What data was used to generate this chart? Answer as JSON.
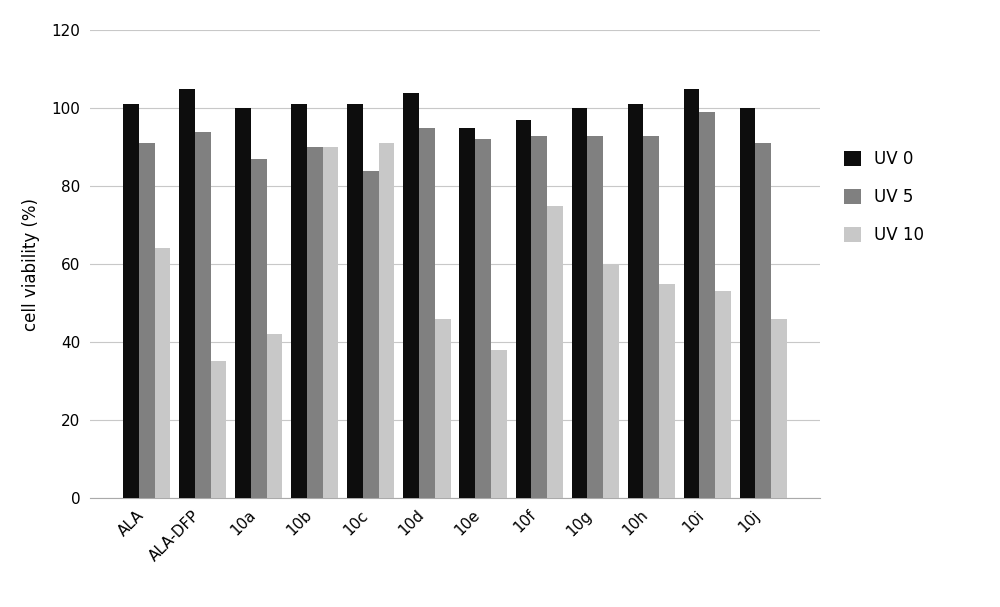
{
  "categories": [
    "ALA",
    "ALA-DFP",
    "10a",
    "10b",
    "10c",
    "10d",
    "10e",
    "10f",
    "10g",
    "10h",
    "10i",
    "10j"
  ],
  "uv0": [
    101,
    105,
    100,
    101,
    101,
    104,
    95,
    97,
    100,
    101,
    105,
    100
  ],
  "uv5": [
    91,
    94,
    87,
    90,
    84,
    95,
    92,
    93,
    93,
    93,
    99,
    91
  ],
  "uv10": [
    64,
    35,
    42,
    90,
    91,
    46,
    38,
    75,
    60,
    55,
    53,
    46
  ],
  "uv0_color": "#0d0d0d",
  "uv5_color": "#808080",
  "uv10_color": "#c8c8c8",
  "ylabel": "cell viability (%)",
  "ylim": [
    0,
    120
  ],
  "yticks": [
    0,
    20,
    40,
    60,
    80,
    100,
    120
  ],
  "legend_labels": [
    "UV 0",
    "UV 5",
    "UV 10"
  ],
  "bar_width": 0.28,
  "figsize": [
    10.0,
    6.07
  ],
  "dpi": 100,
  "background_color": "#ffffff",
  "grid_color": "#c8c8c8"
}
